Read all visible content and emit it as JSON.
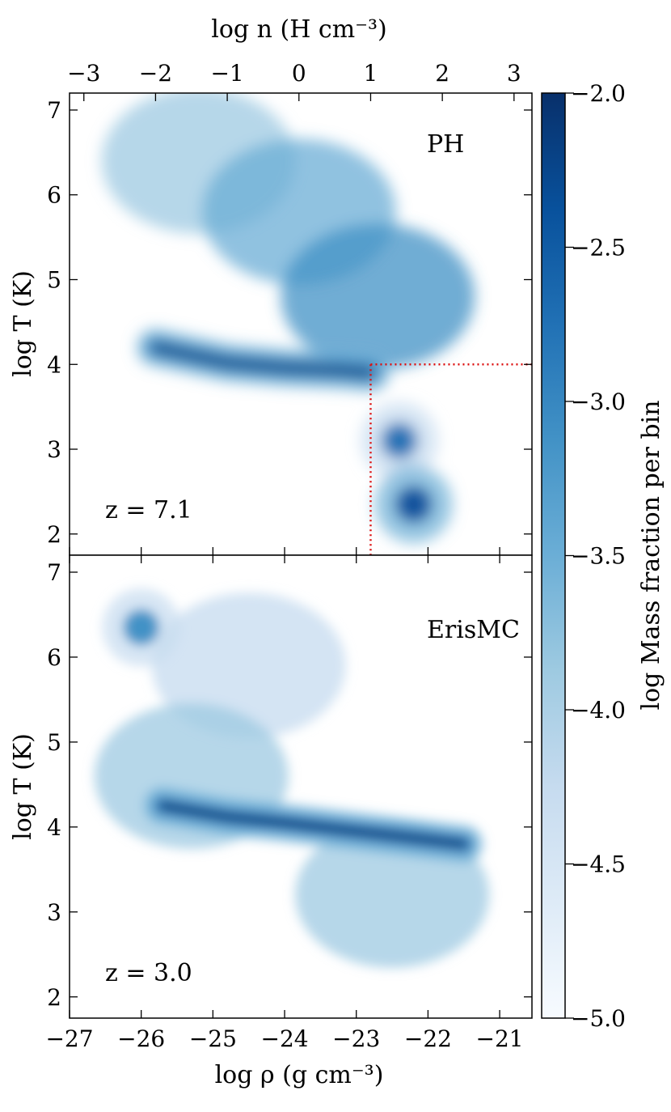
{
  "chart_data": {
    "type": "heatmap",
    "axes_shared": {
      "x_bottom": {
        "label": "log ρ (g cm⁻³)",
        "range": [
          -27.0,
          -20.55
        ],
        "ticks": [
          -27,
          -26,
          -25,
          -24,
          -23,
          -22,
          -21
        ],
        "tick_labels": [
          "−27",
          "−26",
          "−25",
          "−24",
          "−23",
          "−22",
          "−21"
        ]
      },
      "x_top": {
        "label": "log n (H cm⁻³)",
        "ticks": [
          -3,
          -2,
          -1,
          0,
          1,
          2,
          3
        ],
        "tick_labels": [
          "−3",
          "−2",
          "−1",
          "0",
          "1",
          "2",
          "3"
        ],
        "mapping": "log n = log ρ + 23.8"
      },
      "y": {
        "label": "log T (K)",
        "range": [
          1.75,
          7.2
        ],
        "ticks": [
          2,
          3,
          4,
          5,
          6,
          7
        ],
        "tick_labels": [
          "2",
          "3",
          "4",
          "5",
          "6",
          "7"
        ]
      }
    },
    "colorbar": {
      "label": "log Mass fraction per bin",
      "range": [
        -5.0,
        -2.0
      ],
      "ticks": [
        -2.0,
        -2.5,
        -3.0,
        -3.5,
        -4.0,
        -4.5,
        -5.0
      ],
      "tick_labels": [
        "−2.0",
        "−2.5",
        "−3.0",
        "−3.5",
        "−4.0",
        "−4.5",
        "−5.0"
      ],
      "colormap": "Blues",
      "colors": [
        "#f7fbff",
        "#deebf7",
        "#c6dbef",
        "#9ecae1",
        "#6baed6",
        "#4292c6",
        "#2171b5",
        "#08519c",
        "#08306b"
      ]
    },
    "panels": [
      {
        "name": "PH",
        "redshift_label": "z = 7.1",
        "threshold_lines": {
          "log_n": 1.0,
          "log_T": 4.0,
          "color": "#dd1111",
          "style": "dotted"
        },
        "features": [
          {
            "type": "band",
            "points": [
              [
                -25.8,
                4.2
              ],
              [
                -24.8,
                4.02
              ],
              [
                -24.0,
                3.96
              ],
              [
                -23.2,
                3.93
              ],
              [
                -22.8,
                3.9
              ]
            ],
            "peak": -2.1
          },
          {
            "type": "blob",
            "x": -22.2,
            "y": 2.35,
            "peak": -2.3
          },
          {
            "type": "blob",
            "x": -22.4,
            "y": 3.1,
            "peak": -2.9
          },
          {
            "type": "region",
            "x": -25.2,
            "y": 6.4,
            "peak": -3.9
          },
          {
            "type": "region",
            "x": -23.8,
            "y": 5.8,
            "peak": -3.6
          },
          {
            "type": "region",
            "x": -22.7,
            "y": 4.8,
            "peak": -3.2
          }
        ]
      },
      {
        "name": "ErisMC",
        "redshift_label": "z = 3.0",
        "features": [
          {
            "type": "band",
            "points": [
              [
                -25.7,
                4.25
              ],
              [
                -24.8,
                4.12
              ],
              [
                -24.0,
                4.05
              ],
              [
                -23.0,
                3.95
              ],
              [
                -22.0,
                3.85
              ],
              [
                -21.5,
                3.8
              ]
            ],
            "peak": -2.0
          },
          {
            "type": "blob",
            "x": -26.0,
            "y": 6.35,
            "peak": -3.2
          },
          {
            "type": "region",
            "x": -24.5,
            "y": 5.9,
            "peak": -4.2
          },
          {
            "type": "region",
            "x": -22.5,
            "y": 3.2,
            "peak": -3.9
          },
          {
            "type": "region",
            "x": -25.3,
            "y": 4.6,
            "peak": -4.0
          }
        ]
      }
    ]
  }
}
